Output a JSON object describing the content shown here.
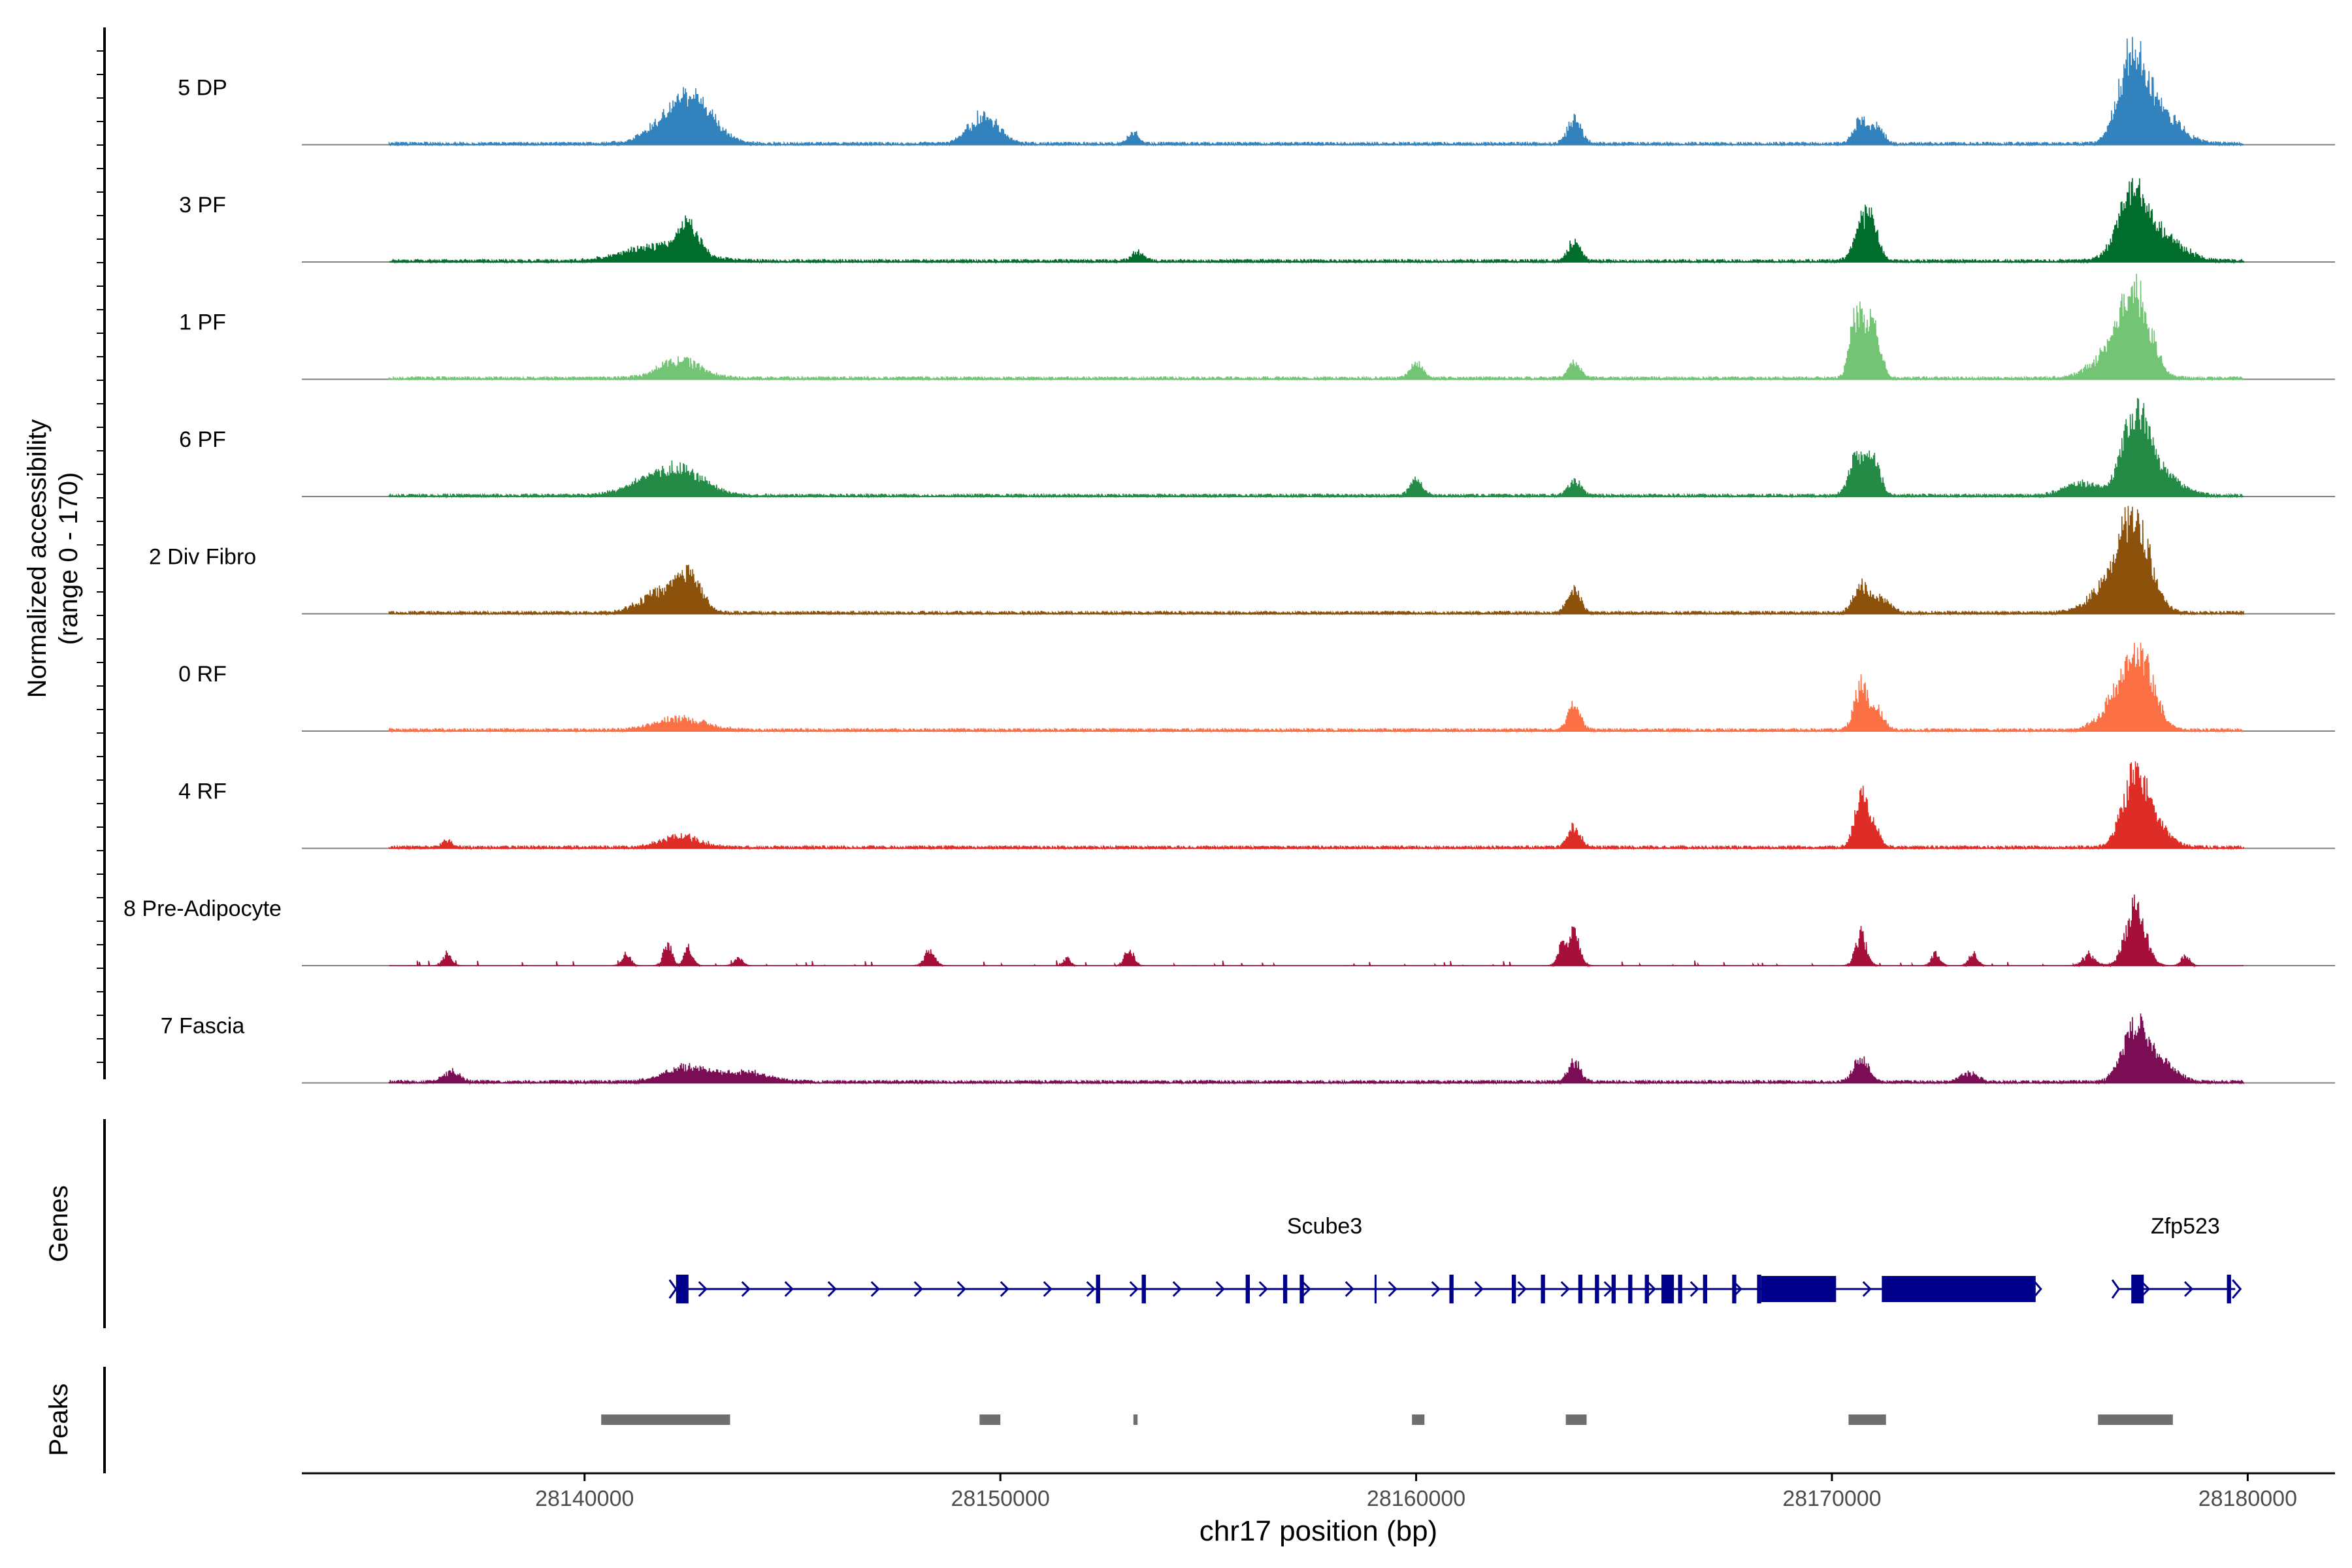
{
  "chart_data": {
    "type": "area",
    "title": "",
    "ylabel_line1": "Normalized accessibility",
    "ylabel_line2": "(range 0 - 170)",
    "ylim": [
      0,
      170
    ],
    "xlabel": "chr17 position (bp)",
    "xlim": [
      28133200,
      28182100
    ],
    "xticks": [
      28140000,
      28150000,
      28160000,
      28170000,
      28180000
    ],
    "xtick_labels": [
      "28140000",
      "28150000",
      "28160000",
      "28170000",
      "28180000"
    ],
    "genes_label": "Genes",
    "peaks_label": "Peaks",
    "track_range": [
      28135300,
      28179900
    ],
    "series": [
      {
        "name": "5 DP",
        "color": "#3182bd",
        "peaks": [
          [
            28142300,
            62,
            600
          ],
          [
            28142700,
            42,
            450
          ],
          [
            28149600,
            55,
            350
          ],
          [
            28153200,
            22,
            120
          ],
          [
            28163800,
            50,
            160
          ],
          [
            28170700,
            48,
            160
          ],
          [
            28171100,
            38,
            140
          ],
          [
            28177200,
            160,
            300
          ],
          [
            28177800,
            70,
            500
          ]
        ]
      },
      {
        "name": "3 PF",
        "color": "#006d2c",
        "peaks": [
          [
            28141800,
            30,
            800
          ],
          [
            28142500,
            55,
            250
          ],
          [
            28153300,
            18,
            150
          ],
          [
            28163800,
            38,
            150
          ],
          [
            28170700,
            78,
            180
          ],
          [
            28171000,
            60,
            150
          ],
          [
            28177200,
            105,
            300
          ],
          [
            28177700,
            60,
            600
          ]
        ]
      },
      {
        "name": "1 PF",
        "color": "#74c476",
        "peaks": [
          [
            28142300,
            35,
            500
          ],
          [
            28160000,
            30,
            150
          ],
          [
            28163800,
            30,
            150
          ],
          [
            28170600,
            125,
            160
          ],
          [
            28171000,
            115,
            160
          ],
          [
            28177300,
            150,
            350
          ],
          [
            28176800,
            50,
            500
          ]
        ]
      },
      {
        "name": "6 PF",
        "color": "#238b45",
        "peaks": [
          [
            28142300,
            45,
            600
          ],
          [
            28141500,
            20,
            600
          ],
          [
            28160000,
            30,
            150
          ],
          [
            28163800,
            32,
            150
          ],
          [
            28170600,
            80,
            180
          ],
          [
            28171000,
            72,
            160
          ],
          [
            28177300,
            145,
            300
          ],
          [
            28176000,
            25,
            400
          ],
          [
            28177800,
            50,
            500
          ]
        ]
      },
      {
        "name": "2 Div Fibro",
        "color": "#8c510a",
        "peaks": [
          [
            28142500,
            70,
            300
          ],
          [
            28141800,
            40,
            450
          ],
          [
            28163800,
            45,
            160
          ],
          [
            28170700,
            55,
            180
          ],
          [
            28171200,
            30,
            200
          ],
          [
            28177300,
            160,
            350
          ],
          [
            28176800,
            60,
            500
          ]
        ]
      },
      {
        "name": "0 RF",
        "color": "#fc7045",
        "peaks": [
          [
            28142300,
            22,
            600
          ],
          [
            28163800,
            48,
            150
          ],
          [
            28170700,
            88,
            160
          ],
          [
            28171100,
            40,
            150
          ],
          [
            28177400,
            130,
            350
          ],
          [
            28176900,
            55,
            400
          ]
        ]
      },
      {
        "name": "4 RF",
        "color": "#de2d26",
        "peaks": [
          [
            28136700,
            14,
            120
          ],
          [
            28142300,
            22,
            450
          ],
          [
            28163800,
            40,
            150
          ],
          [
            28170700,
            95,
            160
          ],
          [
            28171000,
            35,
            150
          ],
          [
            28177300,
            130,
            300
          ],
          [
            28177700,
            40,
            400
          ]
        ]
      },
      {
        "name": "8 Pre-Adipocyte",
        "color": "#a50f3a",
        "peaks": [
          [
            28136700,
            25,
            100
          ],
          [
            28141000,
            25,
            100
          ],
          [
            28142000,
            45,
            100
          ],
          [
            28142500,
            35,
            100
          ],
          [
            28143700,
            15,
            100
          ],
          [
            28148300,
            30,
            120
          ],
          [
            28151600,
            15,
            80
          ],
          [
            28153100,
            35,
            100
          ],
          [
            28163800,
            65,
            130
          ],
          [
            28163500,
            40,
            100
          ],
          [
            28170700,
            60,
            130
          ],
          [
            28172500,
            25,
            100
          ],
          [
            28173400,
            25,
            100
          ],
          [
            28177300,
            115,
            230
          ],
          [
            28176200,
            20,
            150
          ],
          [
            28178500,
            20,
            100
          ]
        ]
      },
      {
        "name": "7 Fascia",
        "color": "#7b0d55",
        "peaks": [
          [
            28136800,
            20,
            200
          ],
          [
            28142400,
            30,
            500
          ],
          [
            28143800,
            20,
            600
          ],
          [
            28163800,
            40,
            150
          ],
          [
            28170700,
            48,
            180
          ],
          [
            28173300,
            18,
            200
          ],
          [
            28177300,
            105,
            300
          ],
          [
            28177900,
            40,
            350
          ]
        ]
      }
    ],
    "genes": [
      {
        "name": "Scube3",
        "start": 28142200,
        "end": 28174900,
        "strand": "+",
        "label_pos": 28157800,
        "exons": [
          [
            28142200,
            28142500
          ],
          [
            28152300,
            28152400
          ],
          [
            28153400,
            28153500
          ],
          [
            28155900,
            28156000
          ],
          [
            28156800,
            28156900
          ],
          [
            28157200,
            28157300
          ],
          [
            28159000,
            28159020
          ],
          [
            28160800,
            28160900
          ],
          [
            28162300,
            28162400
          ],
          [
            28163000,
            28163100
          ],
          [
            28163900,
            28164000
          ],
          [
            28164300,
            28164400
          ],
          [
            28164700,
            28164800
          ],
          [
            28165100,
            28165200
          ],
          [
            28165500,
            28165600
          ],
          [
            28165900,
            28166200
          ],
          [
            28166300,
            28166400
          ],
          [
            28166900,
            28167000
          ],
          [
            28167600,
            28167700
          ],
          [
            28168200,
            28168300
          ],
          [
            28168300,
            28170100
          ],
          [
            28171200,
            28174900
          ]
        ]
      },
      {
        "name": "Zfp523",
        "start": 28176900,
        "end": 28179700,
        "strand": "+",
        "label_pos": 28178500,
        "exons": [
          [
            28177200,
            28177500
          ],
          [
            28179500,
            28179600
          ]
        ]
      }
    ],
    "peaks_regions": [
      [
        28140400,
        28143500
      ],
      [
        28149500,
        28150000
      ],
      [
        28153200,
        28153300
      ],
      [
        28159900,
        28160200
      ],
      [
        28163600,
        28164100
      ],
      [
        28170400,
        28171300
      ],
      [
        28176400,
        28178200
      ]
    ]
  }
}
